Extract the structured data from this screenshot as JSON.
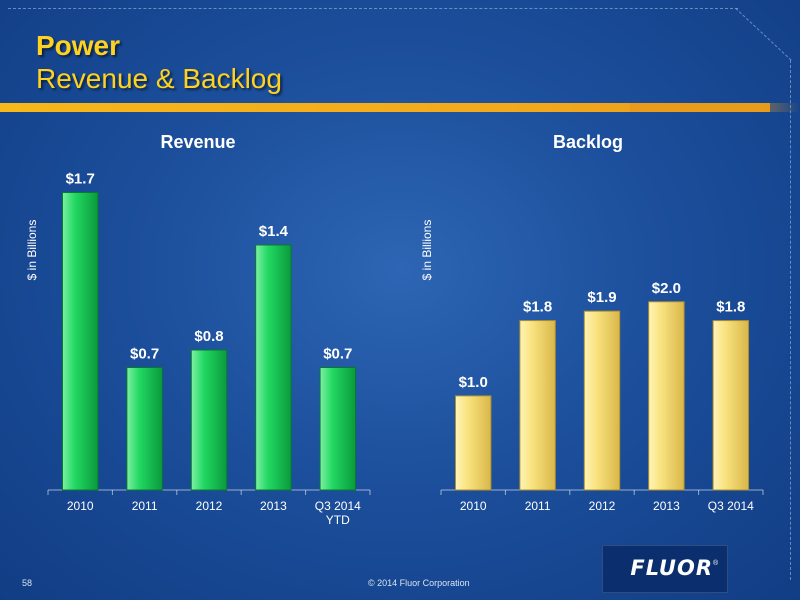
{
  "slide": {
    "title_line1": "Power",
    "title_line2": "Revenue & Backlog",
    "page_number": "58",
    "copyright": "© 2014 Fluor Corporation",
    "logo_text": "FLUOR",
    "logo_mark": "®"
  },
  "colors": {
    "title": "#ffd21f",
    "revenue_bar": "#1fcf5c",
    "backlog_bar": "#f8de72",
    "gold_rule": "#f2a81b"
  },
  "chart_data": [
    {
      "type": "bar",
      "title": "Revenue",
      "ylabel": "$ in Billions",
      "categories": [
        "2010",
        "2011",
        "2012",
        "2013",
        "Q3 2014\nYTD"
      ],
      "values": [
        1.7,
        0.7,
        0.8,
        1.4,
        0.7
      ],
      "data_labels": [
        "$1.7",
        "$0.7",
        "$0.8",
        "$1.4",
        "$0.7"
      ],
      "ylim": [
        0,
        1.8
      ],
      "grid": false,
      "legend": "none"
    },
    {
      "type": "bar",
      "title": "Backlog",
      "ylabel": "$ in Billions",
      "categories": [
        "2010",
        "2011",
        "2012",
        "2013",
        "Q3 2014"
      ],
      "values": [
        1.0,
        1.8,
        1.9,
        2.0,
        1.8
      ],
      "data_labels": [
        "$1.0",
        "$1.8",
        "$1.9",
        "$2.0",
        "$1.8"
      ],
      "ylim": [
        0,
        3.4
      ],
      "grid": false,
      "legend": "none"
    }
  ]
}
